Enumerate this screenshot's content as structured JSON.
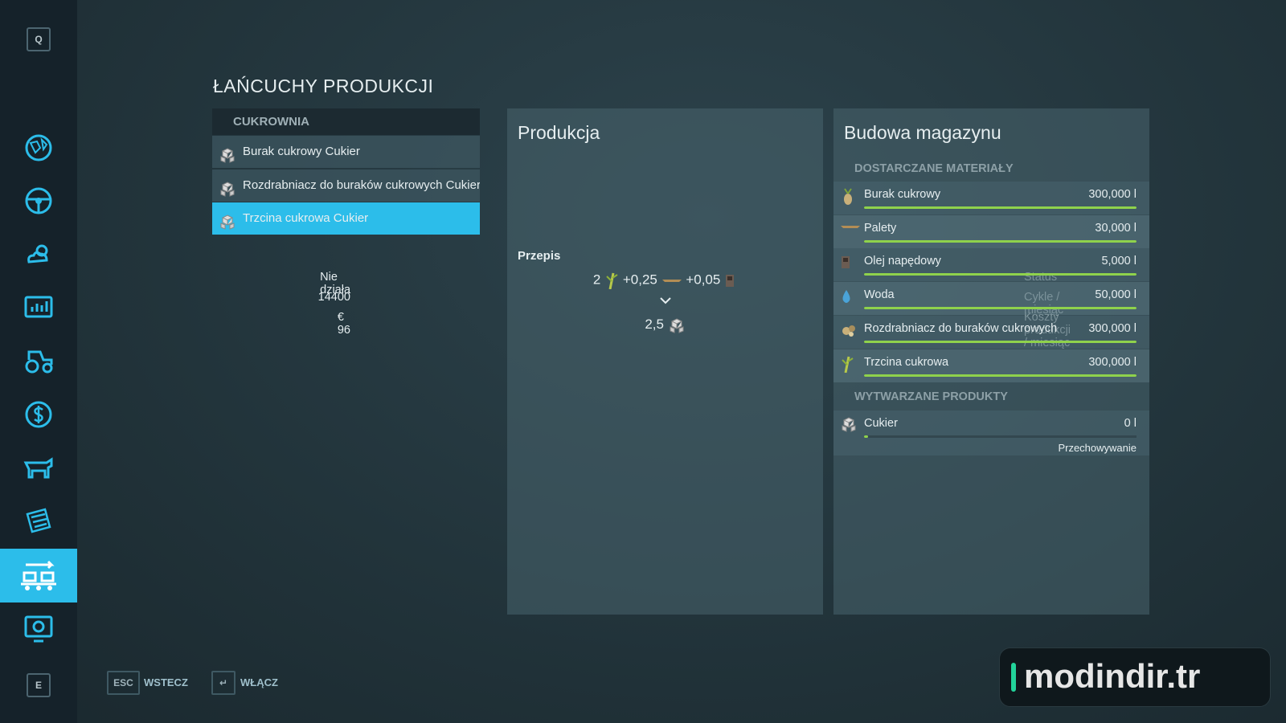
{
  "sidebar": {
    "top_key": "Q",
    "bottom_key": "E"
  },
  "header": {
    "title": "ŁAŃCUCHY PRODUKCJI"
  },
  "chains": {
    "group": "CUKROWNIA",
    "items": [
      "Burak cukrowy Cukier",
      "Rozdrabniacz do buraków cukrowych Cukier",
      "Trzcina cukrowa Cukier"
    ]
  },
  "production": {
    "title": "Produkcja",
    "rows": [
      [
        "Status",
        "Nie działa"
      ],
      [
        "Cykle / miesiąc",
        "14400"
      ],
      [
        "Koszty produkcji / miesiąc",
        "€ 96"
      ]
    ],
    "recipe": {
      "title": "Przepis",
      "inputs": [
        "2",
        "+0,25",
        "+0,05"
      ],
      "output": "2,5"
    }
  },
  "storage": {
    "title": "Budowa magazynu",
    "supplied_header": "DOSTARCZANE MATERIAŁY",
    "supplied": [
      {
        "name": "Burak cukrowy",
        "amount": "300,000 l",
        "fill": 100
      },
      {
        "name": "Palety",
        "amount": "30,000 l",
        "fill": 100
      },
      {
        "name": "Olej napędowy",
        "amount": "5,000 l",
        "fill": 100
      },
      {
        "name": "Woda",
        "amount": "50,000 l",
        "fill": 100
      },
      {
        "name": "Rozdrabniacz do buraków cukrowych",
        "amount": "300,000 l",
        "fill": 100
      },
      {
        "name": "Trzcina cukrowa",
        "amount": "300,000 l",
        "fill": 100
      }
    ],
    "produced_header": "WYTWARZANE PRODUKTY",
    "produced": [
      {
        "name": "Cukier",
        "amount": "0 l",
        "fill": 0,
        "mode": "Przechowywanie"
      }
    ]
  },
  "footer": {
    "back_key": "ESC",
    "back": "WSTECZ",
    "enable_key": "↵",
    "enable": "WŁĄCZ"
  },
  "watermark": "modindir.tr"
}
